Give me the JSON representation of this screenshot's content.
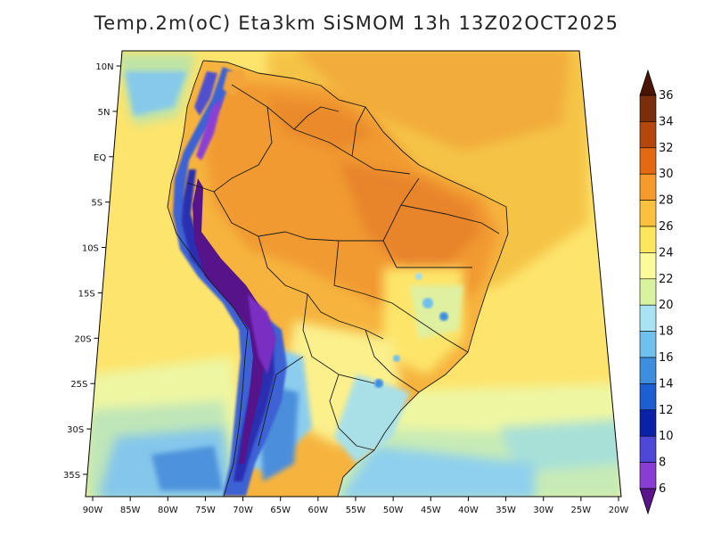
{
  "title": "Temp.2m(oC) Eta3km SiSMOM 13h 13Z02OCT2025",
  "longitude_labels": [
    "90W",
    "85W",
    "80W",
    "75W",
    "70W",
    "65W",
    "60W",
    "55W",
    "50W",
    "45W",
    "40W",
    "35W",
    "30W",
    "25W",
    "20W"
  ],
  "latitude_labels": [
    "10N",
    "5N",
    "EQ",
    "5S",
    "10S",
    "15S",
    "20S",
    "25S",
    "30S",
    "35S"
  ],
  "legend": {
    "labels": [
      "36",
      "34",
      "32",
      "30",
      "28",
      "26",
      "24",
      "22",
      "20",
      "18",
      "16",
      "14",
      "12",
      "10",
      "8",
      "6"
    ],
    "colors": [
      "#4a1406",
      "#7a2e0c",
      "#b5470c",
      "#e36912",
      "#f79a2c",
      "#fbc13c",
      "#fde65b",
      "#fbfb9c",
      "#d9f2a0",
      "#a8e3f5",
      "#6fc0ec",
      "#3e8ee0",
      "#1d5fd0",
      "#0b22a8",
      "#4f47d8",
      "#8a3dd4",
      "#5a148c"
    ]
  },
  "map": {
    "projection_color_ocean_north": "#f4d45a",
    "ocean_south_colors": [
      "#fbe878",
      "#eef5a0",
      "#bfe6b8",
      "#7fc6ee"
    ],
    "land_colors": [
      "#f2a032",
      "#fbc04a",
      "#f7a537",
      "#eb8a2c",
      "#d97a22"
    ],
    "andes_colors": [
      "#3c62d4",
      "#2a2fb0",
      "#6b2ebd",
      "#56138a",
      "#8c3fd3"
    ]
  }
}
